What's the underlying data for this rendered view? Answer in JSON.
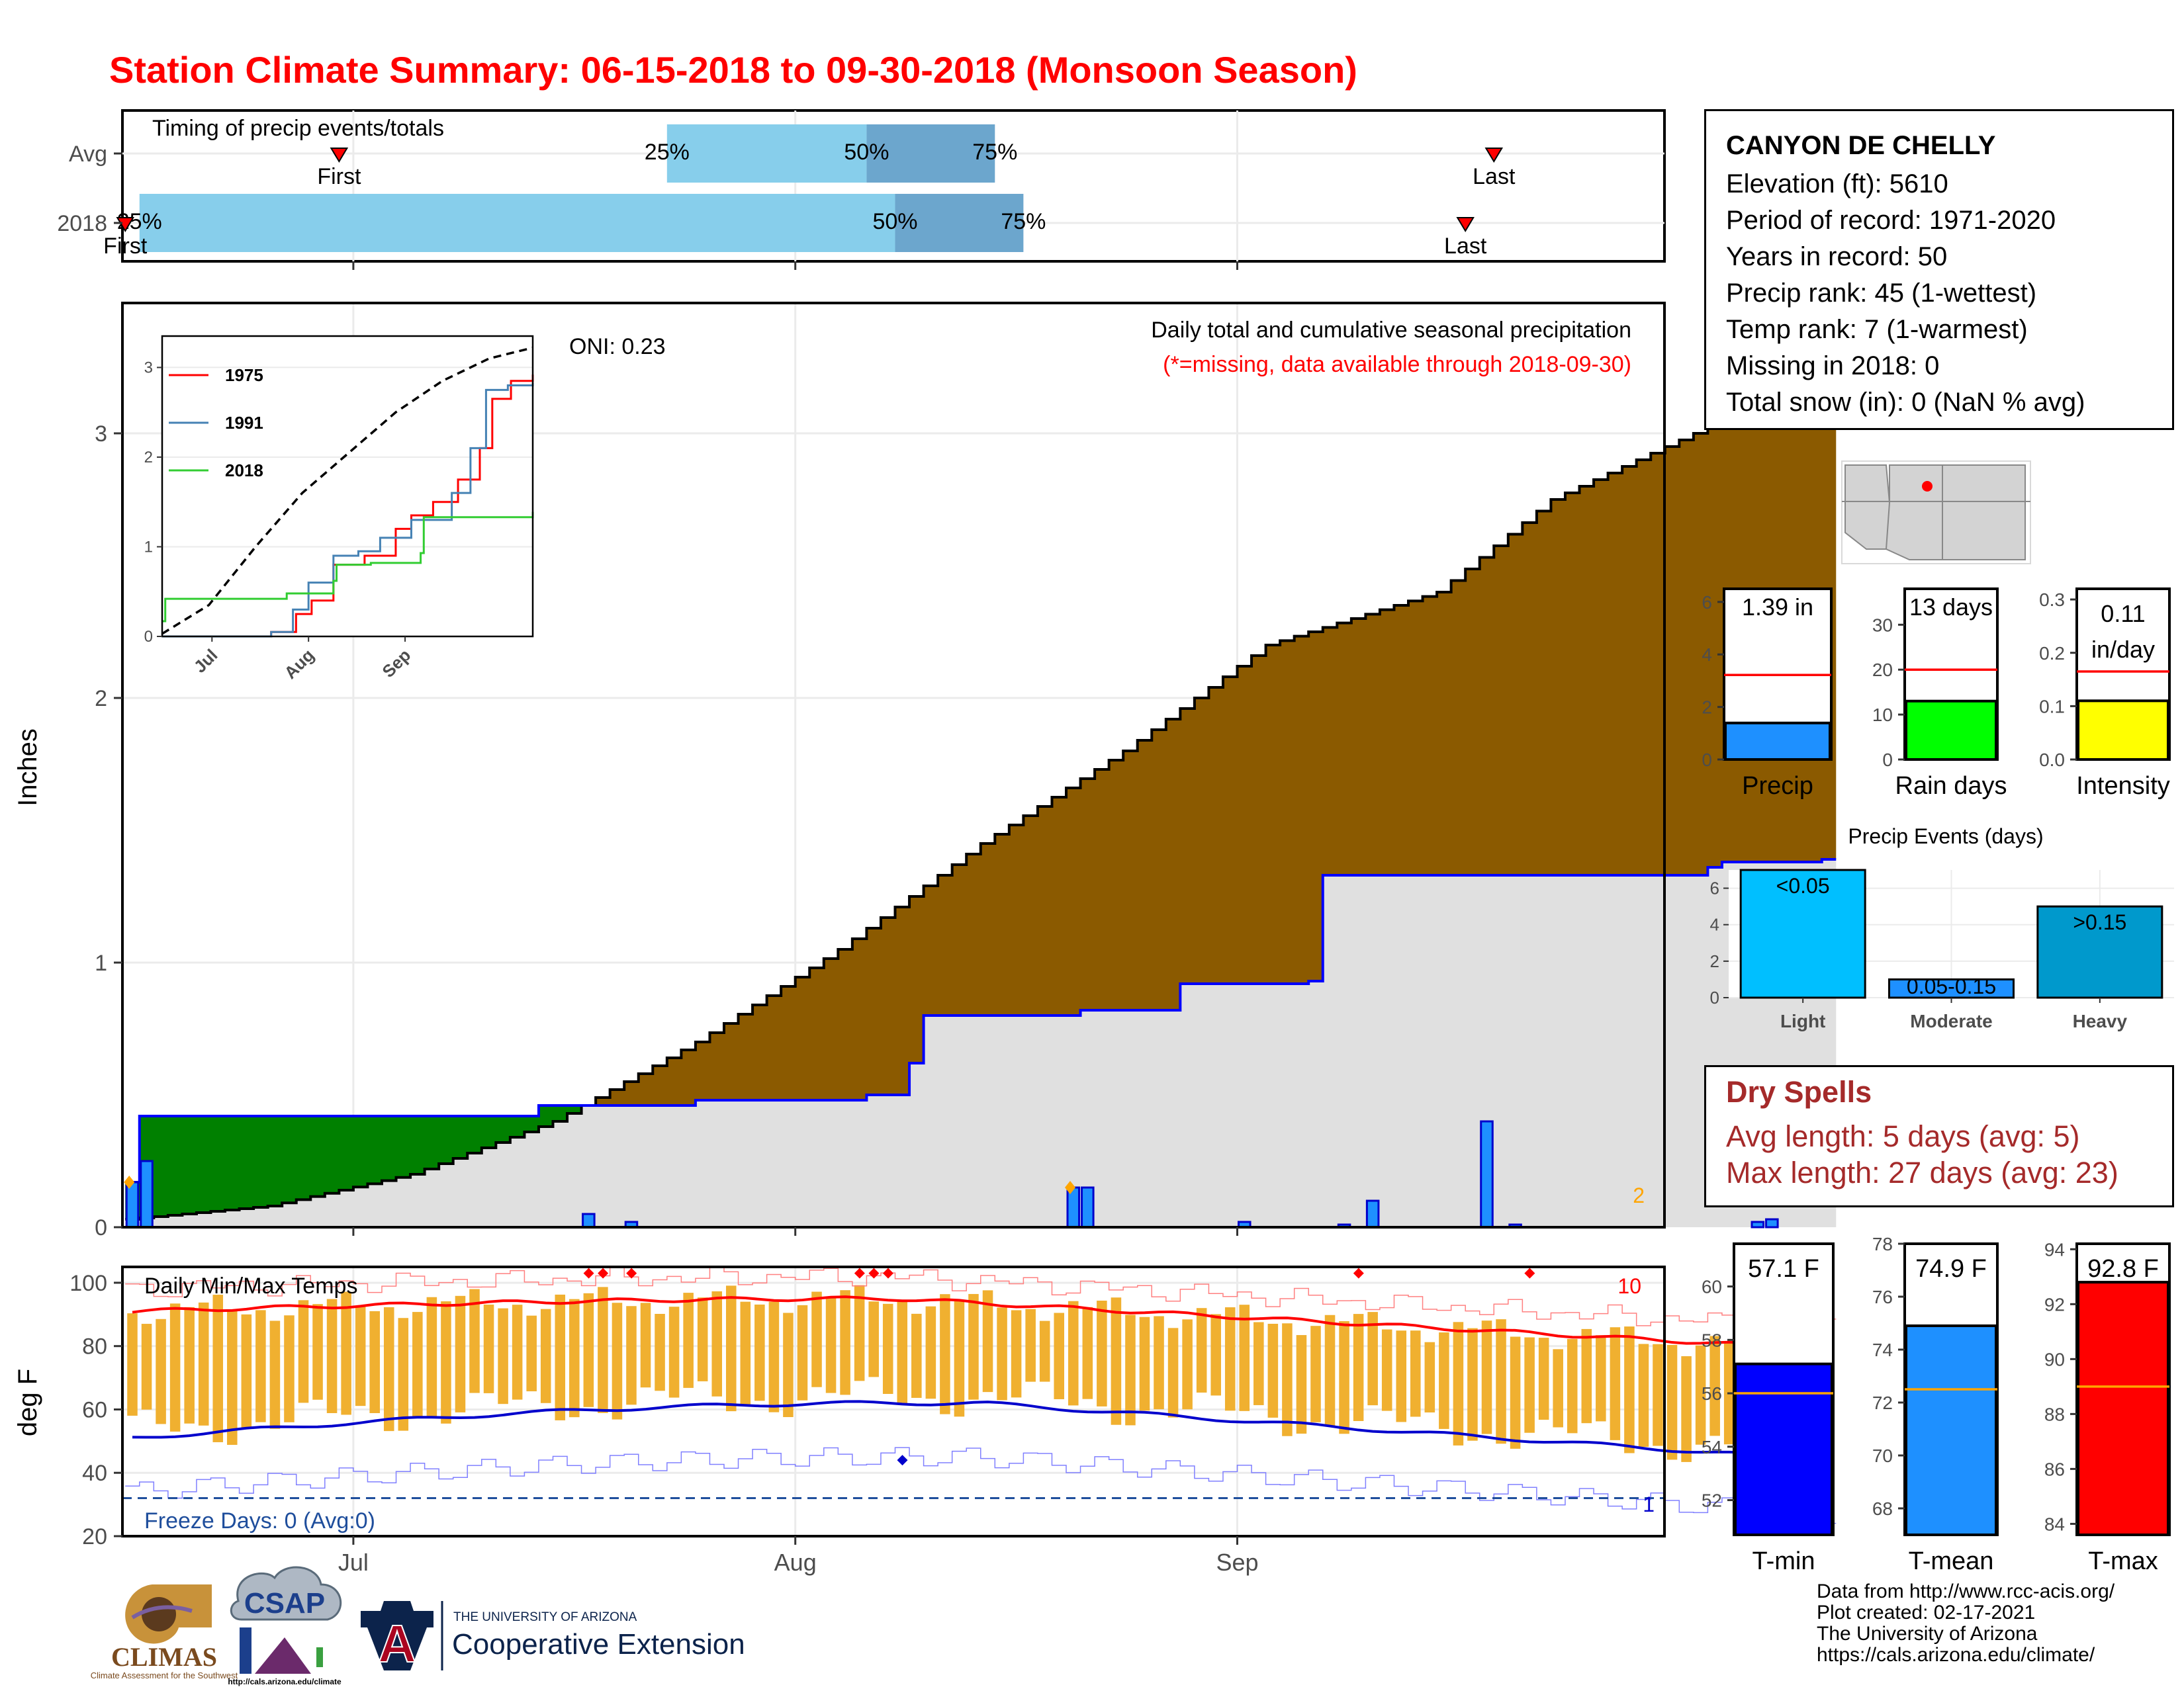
{
  "title": "Station Climate Summary: 06-15-2018 to 09-30-2018 (Monsoon Season)",
  "station": {
    "name": "CANYON DE CHELLY",
    "elevation": "Elevation (ft): 5610",
    "period": "Period of record: 1971-2020",
    "years": "Years in record: 50",
    "precip_rank": "Precip rank: 45 (1-wettest)",
    "temp_rank": "Temp rank: 7 (1-warmest)",
    "missing": "Missing in 2018: 0",
    "snow": "Total snow (in): 0 (NaN % avg)"
  },
  "dry_spells": {
    "title": "Dry Spells",
    "avg": "Avg length: 5 days (avg: 5)",
    "max": "Max length: 27 days (avg: 23)"
  },
  "footer": {
    "line1": "Data from http://www.rcc-acis.org/",
    "line2": "Plot created: 02-17-2021",
    "line3": "The University of Arizona",
    "line4": "https://cals.arizona.edu/climate/"
  },
  "logos": {
    "climas": "CLIMAS",
    "climas_sub": "Climate Assessment for the Southwest",
    "csap": "CSAP",
    "csap_url": "http://cals.arizona.edu/climate",
    "ua_letter": "A",
    "ua_small": "THE UNIVERSITY OF ARIZONA",
    "ua_big": "Cooperative Extension"
  },
  "colors": {
    "title": "#ff0000",
    "cum_2018": "#8B5A00",
    "cum_2018_early": "#008000",
    "avg_fill": "#e0e0e0",
    "avg_line": "#0000ff",
    "daily_bar": "#1E90FF",
    "temp_bar": "#F0B030",
    "tmax_avg": "#ff0000",
    "tmin_avg": "#0000cc",
    "q_light": "#87CEEB",
    "q_dark": "#6CA6CD"
  },
  "chart_data": [
    {
      "type": "timeline",
      "label": "Timing of precip events/totals",
      "rows": [
        {
          "name": "Avg",
          "first": "Jun 30",
          "q25": "Jul 23",
          "q50": "Aug 6",
          "q75": "Aug 15",
          "last": "Sep 19"
        },
        {
          "name": "2018",
          "first": "Jun 15",
          "q25": "Jun 16",
          "q50": "Aug 8",
          "q75": "Aug 17",
          "last": "Sep 17"
        }
      ],
      "marker_labels": {
        "first": "First",
        "last": "Last",
        "q25": "25%",
        "q50": "50%",
        "q75": "75%"
      }
    },
    {
      "type": "area",
      "title": "Daily total and cumulative seasonal precipitation",
      "note": "(*=missing, data available through 2018-09-30)",
      "oni": "ONI: 0.23",
      "ylabel": "Inches",
      "ylim": [
        0,
        3.5
      ],
      "yticks": [
        0,
        1,
        2,
        3
      ],
      "xticks": [
        "Jul",
        "Aug",
        "Sep"
      ],
      "corner_count": "2",
      "cumulative_2018_end": 1.39,
      "cumulative_avg_end": 3.22,
      "avg_cumulative": [
        [
          15,
          0.03
        ],
        [
          25,
          0.08
        ],
        [
          35,
          0.2
        ],
        [
          45,
          0.4
        ],
        [
          55,
          0.7
        ],
        [
          65,
          1.05
        ],
        [
          75,
          1.45
        ],
        [
          85,
          1.8
        ],
        [
          95,
          2.2
        ],
        [
          107,
          2.4
        ],
        [
          115,
          2.75
        ],
        [
          125,
          3.0
        ],
        [
          134,
          3.22
        ]
      ],
      "cumulative_2018": [
        [
          15,
          0.17
        ],
        [
          16,
          0.42
        ],
        [
          38,
          0.42
        ],
        [
          44,
          0.46
        ],
        [
          55,
          0.48
        ],
        [
          67,
          0.5
        ],
        [
          70,
          0.62
        ],
        [
          71,
          0.8
        ],
        [
          82,
          0.82
        ],
        [
          89,
          0.92
        ],
        [
          98,
          0.93
        ],
        [
          99,
          1.33
        ],
        [
          105,
          1.33
        ],
        [
          126,
          1.36
        ],
        [
          127,
          1.38
        ],
        [
          134,
          1.39
        ]
      ],
      "daily_2018": [
        [
          15,
          0.17
        ],
        [
          16,
          0.25
        ],
        [
          47,
          0.05
        ],
        [
          50,
          0.02
        ],
        [
          81,
          0.15
        ],
        [
          82,
          0.15
        ],
        [
          93,
          0.02
        ],
        [
          100,
          0.01
        ],
        [
          102,
          0.1
        ],
        [
          110,
          0.4
        ],
        [
          112,
          0.01
        ],
        [
          129,
          0.02
        ],
        [
          130,
          0.03
        ]
      ],
      "inset": {
        "yticks": [
          0,
          1,
          2,
          3
        ],
        "xticks": [
          "Jul",
          "Aug",
          "Sep"
        ],
        "series": [
          {
            "name": "1975",
            "color": "#ff0000",
            "values": [
              [
                15,
                0
              ],
              [
                50,
                0.05
              ],
              [
                58,
                0.25
              ],
              [
                63,
                0.4
              ],
              [
                70,
                0.8
              ],
              [
                80,
                0.9
              ],
              [
                90,
                1.2
              ],
              [
                95,
                1.35
              ],
              [
                102,
                1.5
              ],
              [
                110,
                1.75
              ],
              [
                117,
                2.1
              ],
              [
                121,
                2.65
              ],
              [
                127,
                2.85
              ],
              [
                134,
                2.92
              ]
            ]
          },
          {
            "name": "1991",
            "color": "#4682B4",
            "values": [
              [
                15,
                0
              ],
              [
                50,
                0.05
              ],
              [
                57,
                0.3
              ],
              [
                62,
                0.6
              ],
              [
                70,
                0.9
              ],
              [
                78,
                0.95
              ],
              [
                85,
                1.1
              ],
              [
                95,
                1.3
              ],
              [
                108,
                1.6
              ],
              [
                114,
                2.1
              ],
              [
                119,
                2.75
              ],
              [
                126,
                2.8
              ],
              [
                134,
                2.83
              ]
            ]
          },
          {
            "name": "2018",
            "color": "#32CD32",
            "values": [
              [
                15,
                0.17
              ],
              [
                16,
                0.42
              ],
              [
                38,
                0.42
              ],
              [
                55,
                0.48
              ],
              [
                70,
                0.62
              ],
              [
                71,
                0.8
              ],
              [
                82,
                0.82
              ],
              [
                98,
                0.93
              ],
              [
                99,
                1.33
              ],
              [
                134,
                1.39
              ]
            ]
          }
        ],
        "average": {
          "color": "#000000",
          "values": [
            [
              15,
              0.03
            ],
            [
              30,
              0.35
            ],
            [
              45,
              1.0
            ],
            [
              60,
              1.6
            ],
            [
              75,
              2.05
            ],
            [
              90,
              2.5
            ],
            [
              105,
              2.85
            ],
            [
              120,
              3.1
            ],
            [
              134,
              3.22
            ]
          ]
        }
      }
    },
    {
      "type": "bar",
      "title": "Daily Min/Max Temps",
      "ylabel": "deg F",
      "ylim": [
        20,
        105
      ],
      "yticks": [
        20,
        40,
        60,
        80,
        100
      ],
      "xticks": [
        "Jul",
        "Aug",
        "Sep"
      ],
      "freeze_label": "Freeze Days: 0 (Avg:0)",
      "freeze_line": 32,
      "count_top": "10",
      "count_bottom": "1",
      "tmax_avg_start": 91,
      "tmax_avg_peak": 95,
      "tmax_avg_end": 79,
      "tmin_avg_start": 51,
      "tmin_avg_peak": 62,
      "tmin_avg_end": 44
    },
    {
      "type": "bar",
      "name": "Precip",
      "label": "1.39 in",
      "value": 1.39,
      "avg": 3.22,
      "ylim": [
        0,
        6.5
      ],
      "yticks": [
        0,
        2,
        4,
        6
      ],
      "color": "#1E90FF"
    },
    {
      "type": "bar",
      "name": "Rain days",
      "label": "13 days",
      "value": 13,
      "avg": 20,
      "ylim": [
        0,
        38
      ],
      "yticks": [
        0,
        10,
        20,
        30
      ],
      "color": "#00ff00"
    },
    {
      "type": "bar",
      "name": "Intensity",
      "label": "0.11 in/day",
      "value": 0.11,
      "avg": 0.165,
      "ylim": [
        0,
        0.32
      ],
      "yticks": [
        0.0,
        0.1,
        0.2,
        0.3
      ],
      "color": "#ffff00"
    },
    {
      "type": "bar",
      "title": "Precip Events (days)",
      "categories": [
        "Light",
        "Moderate",
        "Heavy"
      ],
      "values": [
        7,
        1,
        5
      ],
      "bar_labels": [
        "<0.05",
        "0.05-0.15",
        ">0.15"
      ],
      "colors": [
        "#00BFFF",
        "#1E90FF",
        "#0099CC"
      ],
      "ylim": [
        0,
        7
      ],
      "yticks": [
        0,
        2,
        4,
        6
      ]
    },
    {
      "type": "bar",
      "name": "T-min",
      "label": "57.1 F",
      "value": 57.1,
      "avg": 56,
      "ylim": [
        50.7,
        61.6
      ],
      "yticks": [
        52,
        54,
        56,
        58,
        60
      ],
      "color": "#0000ff"
    },
    {
      "type": "bar",
      "name": "T-mean",
      "label": "74.9 F",
      "value": 74.9,
      "avg": 72.5,
      "ylim": [
        67,
        78
      ],
      "yticks": [
        68,
        70,
        72,
        74,
        76,
        78
      ],
      "color": "#1E90FF"
    },
    {
      "type": "bar",
      "name": "T-max",
      "label": "92.8 F",
      "value": 92.8,
      "avg": 89,
      "ylim": [
        83.6,
        94.2
      ],
      "yticks": [
        84,
        86,
        88,
        90,
        92,
        94
      ],
      "color": "#ff0000"
    }
  ]
}
